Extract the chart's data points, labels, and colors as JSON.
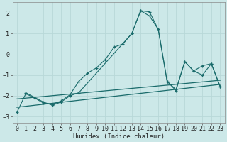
{
  "xlabel": "Humidex (Indice chaleur)",
  "bg_color": "#cce8e8",
  "grid_color": "#d4eaea",
  "line_color": "#1a6b6b",
  "xlim": [
    -0.5,
    23.5
  ],
  "ylim": [
    -3.3,
    2.5
  ],
  "yticks": [
    -3,
    -2,
    -1,
    0,
    1,
    2
  ],
  "xticks": [
    0,
    1,
    2,
    3,
    4,
    5,
    6,
    7,
    8,
    9,
    10,
    11,
    12,
    13,
    14,
    15,
    16,
    17,
    18,
    19,
    20,
    21,
    22,
    23
  ],
  "series": [
    {
      "x": [
        0,
        1,
        2,
        3,
        4,
        5,
        6,
        7,
        8,
        9,
        10,
        11,
        12,
        13,
        14,
        15,
        16,
        17,
        18,
        19,
        20,
        21,
        22,
        23
      ],
      "y": [
        -2.8,
        -1.9,
        -2.1,
        -2.35,
        -2.4,
        -2.25,
        -1.95,
        -1.3,
        -0.9,
        -0.65,
        -0.25,
        0.35,
        0.5,
        1.0,
        2.1,
        2.05,
        1.2,
        -1.3,
        -1.7,
        -0.35,
        -0.8,
        -1.0,
        -0.45,
        -1.55
      ],
      "with_marker": true
    },
    {
      "x": [
        1,
        3,
        4,
        5,
        6,
        7,
        13,
        14,
        15,
        16,
        17,
        18,
        19,
        20,
        21,
        22,
        23
      ],
      "y": [
        -1.85,
        -2.3,
        -2.45,
        -2.3,
        -2.0,
        -1.85,
        1.0,
        2.1,
        1.85,
        1.2,
        -1.3,
        -1.75,
        -0.35,
        -0.8,
        -0.55,
        -0.45,
        -1.55
      ],
      "with_marker": true
    },
    {
      "x": [
        0,
        23
      ],
      "y": [
        -2.55,
        -1.45
      ],
      "with_marker": false
    },
    {
      "x": [
        0,
        23
      ],
      "y": [
        -2.15,
        -1.25
      ],
      "with_marker": false
    }
  ]
}
